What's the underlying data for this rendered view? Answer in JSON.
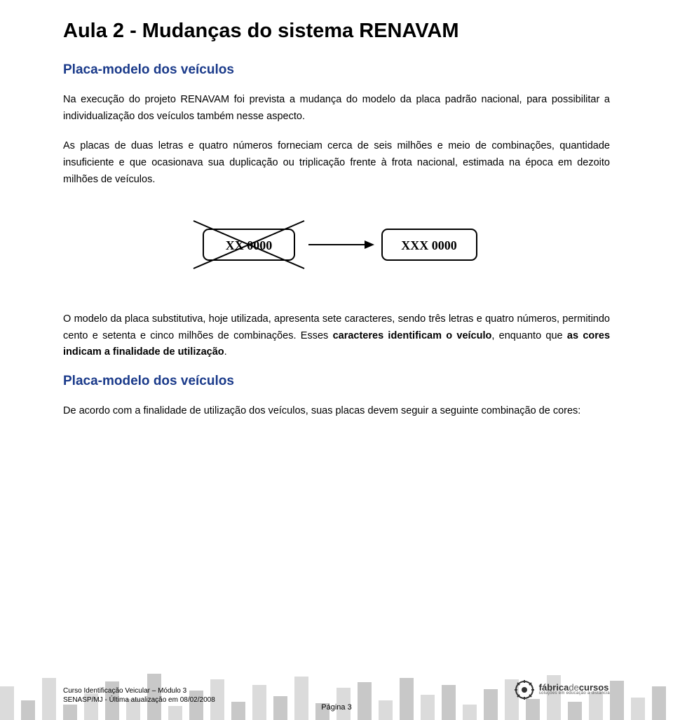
{
  "title": "Aula 2 - Mudanças do sistema RENAVAM",
  "section1": {
    "heading": "Placa-modelo dos veículos",
    "p1": "Na execução do projeto RENAVAM foi prevista a mudança do modelo da placa padrão nacional, para possibilitar a individualização dos veículos também nesse aspecto.",
    "p2": "As placas de duas letras e quatro números forneciam cerca de seis milhões e meio de combinações, quantidade insuficiente e que ocasionava sua duplicação ou triplicação frente à frota nacional, estimada na época em dezoito milhões de veículos."
  },
  "figure": {
    "old_plate": "XX  0000",
    "new_plate": "XXX 0000",
    "box_stroke": "#000000",
    "cross_stroke": "#000000",
    "arrow_fill": "#000000"
  },
  "section2": {
    "p3a": "O modelo da placa substitutiva, hoje utilizada, apresenta sete caracteres, sendo três letras e quatro números, permitindo cento e setenta e cinco milhões de combinações. Esses ",
    "p3b": "caracteres identificam o veículo",
    "p3c": ", enquanto que ",
    "p3d": "as cores indicam a finalidade de utilização",
    "p3e": ".",
    "heading": "Placa-modelo dos veículos",
    "p4": "De acordo com a finalidade de utilização dos veículos, suas placas devem seguir a seguinte combinação de cores:"
  },
  "footer": {
    "line1": "Curso Identificação Veicular – Módulo 3",
    "line2": "SENASP/MJ - Última atualização em 08/02/2008",
    "page": "Página 3",
    "logo_main1": "fábrica",
    "logo_main2": "de",
    "logo_main3": "cursos",
    "logo_tag": "soluções em educação a distância"
  },
  "bars": {
    "colors": [
      "#bdbdbd",
      "#9a9a9a",
      "#bdbdbd",
      "#9a9a9a",
      "#bdbdbd",
      "#9a9a9a",
      "#bdbdbd",
      "#9a9a9a",
      "#bdbdbd",
      "#9a9a9a",
      "#bdbdbd",
      "#9a9a9a",
      "#bdbdbd",
      "#9a9a9a",
      "#bdbdbd",
      "#9a9a9a",
      "#bdbdbd",
      "#9a9a9a",
      "#bdbdbd",
      "#9a9a9a",
      "#bdbdbd",
      "#9a9a9a",
      "#bdbdbd",
      "#9a9a9a",
      "#bdbdbd",
      "#9a9a9a",
      "#bdbdbd",
      "#9a9a9a",
      "#bdbdbd",
      "#9a9a9a",
      "#bdbdbd",
      "#9a9a9a"
    ],
    "heights": [
      48,
      28,
      60,
      22,
      38,
      55,
      30,
      66,
      20,
      42,
      58,
      26,
      50,
      34,
      62,
      24,
      46,
      54,
      28,
      60,
      36,
      50,
      22,
      44,
      58,
      30,
      64,
      26,
      40,
      56,
      32,
      48
    ],
    "width": 20,
    "gap": 10
  }
}
